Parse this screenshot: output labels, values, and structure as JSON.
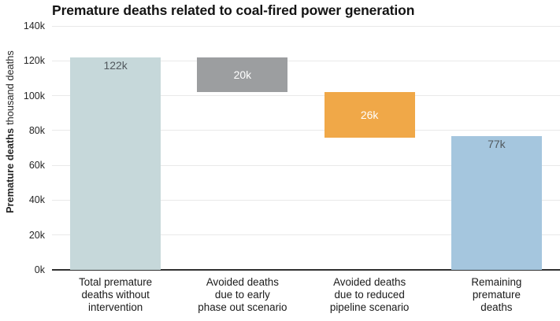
{
  "chart_data": {
    "type": "bar",
    "variant": "waterfall",
    "title": "Premature deaths related to coal-fired power generation",
    "ylabel_bold": "Premature deaths",
    "ylabel_unit": "thousand deaths",
    "xlabel": "",
    "ylim": [
      0,
      140000
    ],
    "y_tick_step": 20000,
    "y_tick_labels": [
      "0k",
      "20k",
      "40k",
      "60k",
      "80k",
      "100k",
      "120k",
      "140k"
    ],
    "grid": "horizontal",
    "legend": "none",
    "background": "#ffffff",
    "gridline_color": "#e9e9e9",
    "zero_axis_color": "#303030",
    "categories": [
      "Total premature deaths without intervention",
      "Avoided deaths due to early phase out scenario",
      "Avoided deaths due to reduced pipeline scenario",
      "Remaining premature deaths"
    ],
    "bars": [
      {
        "category_lines": "Total premature\ndeaths without\nintervention",
        "value": 122000,
        "value_label": "122k",
        "span_from": 0,
        "span_to": 122000,
        "color": "#c6d8da",
        "label_color": "#52595e",
        "label_position": "inside-top"
      },
      {
        "category_lines": "Avoided deaths\ndue to early\nphase out scenario",
        "value": 20000,
        "value_label": "20k",
        "span_from": 102000,
        "span_to": 122000,
        "color": "#9c9ea0",
        "label_color": "#ffffff",
        "label_position": "inside-center"
      },
      {
        "category_lines": "Avoided deaths\ndue to reduced\npipeline scenario",
        "value": 26000,
        "value_label": "26k",
        "span_from": 76000,
        "span_to": 102000,
        "color": "#f0a848",
        "label_color": "#ffffff",
        "label_position": "inside-center"
      },
      {
        "category_lines": "Remaining\npremature\ndeaths",
        "value": 77000,
        "value_label": "77k",
        "span_from": 0,
        "span_to": 77000,
        "color": "#a5c6de",
        "label_color": "#52595e",
        "label_position": "inside-top"
      }
    ]
  }
}
